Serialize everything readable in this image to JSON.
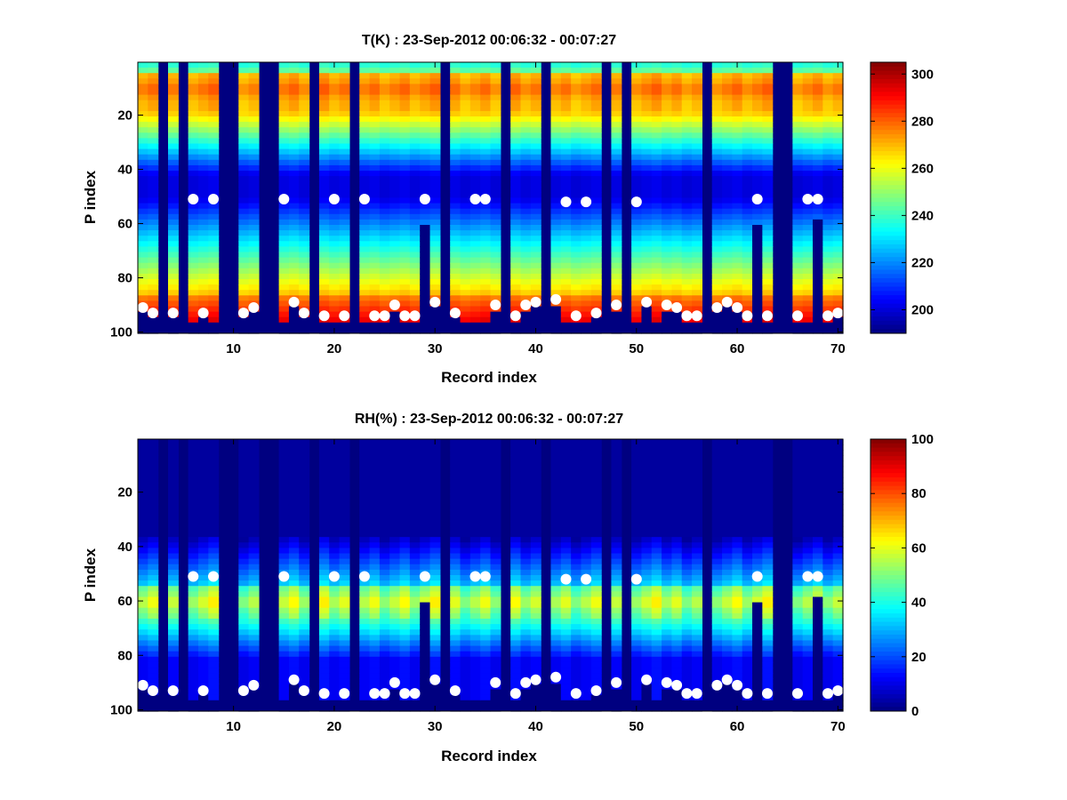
{
  "chart_data": [
    {
      "type": "heatmap",
      "title": "T(K) : 23-Sep-2012 00:06:32 - 00:07:27",
      "xlabel": "Record index",
      "ylabel": "P index",
      "xlim": [
        1,
        70
      ],
      "ylim": [
        1,
        100
      ],
      "y_reversed": true,
      "xticks": [
        10,
        20,
        30,
        40,
        50,
        60,
        70
      ],
      "yticks": [
        20,
        40,
        60,
        80,
        100
      ],
      "colorbar": {
        "min": 190,
        "max": 305,
        "ticks": [
          200,
          220,
          240,
          260,
          280,
          300
        ]
      },
      "field": "temperature",
      "missing_columns": [
        3,
        5,
        9,
        10,
        13,
        14,
        18,
        22,
        31,
        37,
        41,
        47,
        49,
        57,
        64,
        65
      ],
      "partial_columns": [
        {
          "x": 29,
          "from": 60
        },
        {
          "x": 62,
          "from": 60
        },
        {
          "x": 68,
          "from": 59
        }
      ],
      "markers": [
        {
          "x": 1,
          "y": 91
        },
        {
          "x": 2,
          "y": 93
        },
        {
          "x": 4,
          "y": 93
        },
        {
          "x": 6,
          "y": 51
        },
        {
          "x": 7,
          "y": 93
        },
        {
          "x": 8,
          "y": 51
        },
        {
          "x": 11,
          "y": 93
        },
        {
          "x": 12,
          "y": 91
        },
        {
          "x": 15,
          "y": 51
        },
        {
          "x": 16,
          "y": 89
        },
        {
          "x": 17,
          "y": 93
        },
        {
          "x": 19,
          "y": 94
        },
        {
          "x": 20,
          "y": 51
        },
        {
          "x": 21,
          "y": 94
        },
        {
          "x": 23,
          "y": 51
        },
        {
          "x": 24,
          "y": 94
        },
        {
          "x": 25,
          "y": 94
        },
        {
          "x": 26,
          "y": 90
        },
        {
          "x": 27,
          "y": 94
        },
        {
          "x": 28,
          "y": 94
        },
        {
          "x": 29,
          "y": 51
        },
        {
          "x": 30,
          "y": 89
        },
        {
          "x": 32,
          "y": 93
        },
        {
          "x": 34,
          "y": 51
        },
        {
          "x": 35,
          "y": 51
        },
        {
          "x": 36,
          "y": 90
        },
        {
          "x": 38,
          "y": 94
        },
        {
          "x": 39,
          "y": 90
        },
        {
          "x": 40,
          "y": 89
        },
        {
          "x": 42,
          "y": 88
        },
        {
          "x": 43,
          "y": 52
        },
        {
          "x": 44,
          "y": 94
        },
        {
          "x": 45,
          "y": 52
        },
        {
          "x": 46,
          "y": 93
        },
        {
          "x": 48,
          "y": 90
        },
        {
          "x": 50,
          "y": 52
        },
        {
          "x": 51,
          "y": 89
        },
        {
          "x": 53,
          "y": 90
        },
        {
          "x": 54,
          "y": 91
        },
        {
          "x": 55,
          "y": 94
        },
        {
          "x": 56,
          "y": 94
        },
        {
          "x": 58,
          "y": 91
        },
        {
          "x": 59,
          "y": 89
        },
        {
          "x": 60,
          "y": 91
        },
        {
          "x": 61,
          "y": 94
        },
        {
          "x": 62,
          "y": 51
        },
        {
          "x": 63,
          "y": 94
        },
        {
          "x": 66,
          "y": 94
        },
        {
          "x": 67,
          "y": 51
        },
        {
          "x": 68,
          "y": 51
        },
        {
          "x": 69,
          "y": 94
        },
        {
          "x": 70,
          "y": 93
        }
      ]
    },
    {
      "type": "heatmap",
      "title": "RH(%) : 23-Sep-2012 00:06:32 - 00:07:27",
      "xlabel": "Record index",
      "ylabel": "P index",
      "xlim": [
        1,
        70
      ],
      "ylim": [
        1,
        100
      ],
      "y_reversed": true,
      "xticks": [
        10,
        20,
        30,
        40,
        50,
        60,
        70
      ],
      "yticks": [
        20,
        40,
        60,
        80,
        100
      ],
      "colorbar": {
        "min": 0,
        "max": 100,
        "ticks": [
          0,
          20,
          40,
          60,
          80,
          100
        ]
      },
      "field": "humidity",
      "missing_columns": [
        3,
        5,
        9,
        10,
        13,
        14,
        18,
        22,
        31,
        37,
        41,
        47,
        49,
        57,
        64,
        65
      ],
      "partial_columns": [
        {
          "x": 29,
          "from": 60
        },
        {
          "x": 62,
          "from": 60
        },
        {
          "x": 68,
          "from": 59
        }
      ],
      "markers": [
        {
          "x": 1,
          "y": 91
        },
        {
          "x": 2,
          "y": 93
        },
        {
          "x": 4,
          "y": 93
        },
        {
          "x": 6,
          "y": 51
        },
        {
          "x": 7,
          "y": 93
        },
        {
          "x": 8,
          "y": 51
        },
        {
          "x": 11,
          "y": 93
        },
        {
          "x": 12,
          "y": 91
        },
        {
          "x": 15,
          "y": 51
        },
        {
          "x": 16,
          "y": 89
        },
        {
          "x": 17,
          "y": 93
        },
        {
          "x": 19,
          "y": 94
        },
        {
          "x": 20,
          "y": 51
        },
        {
          "x": 21,
          "y": 94
        },
        {
          "x": 23,
          "y": 51
        },
        {
          "x": 24,
          "y": 94
        },
        {
          "x": 25,
          "y": 94
        },
        {
          "x": 26,
          "y": 90
        },
        {
          "x": 27,
          "y": 94
        },
        {
          "x": 28,
          "y": 94
        },
        {
          "x": 29,
          "y": 51
        },
        {
          "x": 30,
          "y": 89
        },
        {
          "x": 32,
          "y": 93
        },
        {
          "x": 34,
          "y": 51
        },
        {
          "x": 35,
          "y": 51
        },
        {
          "x": 36,
          "y": 90
        },
        {
          "x": 38,
          "y": 94
        },
        {
          "x": 39,
          "y": 90
        },
        {
          "x": 40,
          "y": 89
        },
        {
          "x": 42,
          "y": 88
        },
        {
          "x": 43,
          "y": 52
        },
        {
          "x": 44,
          "y": 94
        },
        {
          "x": 45,
          "y": 52
        },
        {
          "x": 46,
          "y": 93
        },
        {
          "x": 48,
          "y": 90
        },
        {
          "x": 50,
          "y": 52
        },
        {
          "x": 51,
          "y": 89
        },
        {
          "x": 53,
          "y": 90
        },
        {
          "x": 54,
          "y": 91
        },
        {
          "x": 55,
          "y": 94
        },
        {
          "x": 56,
          "y": 94
        },
        {
          "x": 58,
          "y": 91
        },
        {
          "x": 59,
          "y": 89
        },
        {
          "x": 60,
          "y": 91
        },
        {
          "x": 61,
          "y": 94
        },
        {
          "x": 62,
          "y": 51
        },
        {
          "x": 63,
          "y": 94
        },
        {
          "x": 66,
          "y": 94
        },
        {
          "x": 67,
          "y": 51
        },
        {
          "x": 68,
          "y": 51
        },
        {
          "x": 69,
          "y": 94
        },
        {
          "x": 70,
          "y": 93
        }
      ]
    }
  ]
}
